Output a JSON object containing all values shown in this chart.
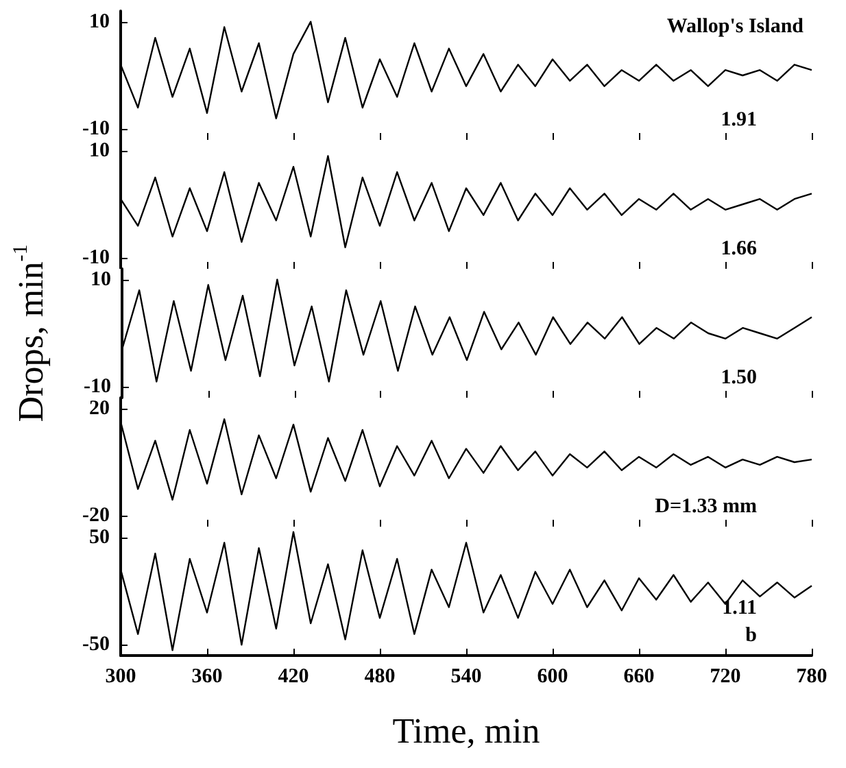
{
  "chart_data": [
    {
      "type": "line",
      "x": [
        300,
        312,
        324,
        336,
        348,
        360,
        372,
        384,
        396,
        408,
        420,
        432,
        444,
        456,
        468,
        480,
        492,
        504,
        516,
        528,
        540,
        552,
        564,
        576,
        588,
        600,
        612,
        624,
        636,
        648,
        660,
        672,
        684,
        696,
        708,
        720,
        732,
        744,
        756,
        768,
        780
      ],
      "series": [
        {
          "color": "#000000",
          "values": [
            2,
            -6,
            7,
            -4,
            5,
            -7,
            9,
            -3,
            6,
            -8,
            4,
            10,
            -5,
            7,
            -6,
            3,
            -4,
            6,
            -3,
            5,
            -2,
            4,
            -3,
            2,
            -2,
            3,
            -1,
            2,
            -2,
            1,
            -1,
            2,
            -1,
            1,
            -2,
            1,
            0,
            1,
            -1,
            2,
            1
          ]
        }
      ],
      "xlim": [
        300,
        780
      ],
      "xticks": [
        300,
        360,
        420,
        480,
        540,
        600,
        660,
        720,
        780
      ],
      "ylim": [
        -12,
        12
      ],
      "yticks": [
        -10,
        10
      ],
      "tick_labels": "y",
      "annotations": [
        "Wallop's Island",
        "1.91"
      ]
    },
    {
      "type": "line",
      "x": [
        300,
        312,
        324,
        336,
        348,
        360,
        372,
        384,
        396,
        408,
        420,
        432,
        444,
        456,
        468,
        480,
        492,
        504,
        516,
        528,
        540,
        552,
        564,
        576,
        588,
        600,
        612,
        624,
        636,
        648,
        660,
        672,
        684,
        696,
        708,
        720,
        732,
        744,
        756,
        768,
        780
      ],
      "series": [
        {
          "color": "#000000",
          "values": [
            1,
            -4,
            5,
            -6,
            3,
            -5,
            6,
            -7,
            4,
            -3,
            7,
            -6,
            9,
            -8,
            5,
            -4,
            6,
            -3,
            4,
            -5,
            3,
            -2,
            4,
            -3,
            2,
            -2,
            3,
            -1,
            2,
            -2,
            1,
            -1,
            2,
            -1,
            1,
            -1,
            0,
            1,
            -1,
            1,
            2
          ]
        }
      ],
      "xlim": [
        300,
        780
      ],
      "xticks": [
        300,
        360,
        420,
        480,
        540,
        600,
        660,
        720,
        780
      ],
      "ylim": [
        -12,
        12
      ],
      "yticks": [
        -10,
        10
      ],
      "tick_labels": "y",
      "annotations": [
        "1.66"
      ]
    },
    {
      "type": "line",
      "x": [
        300,
        312,
        324,
        336,
        348,
        360,
        372,
        384,
        396,
        408,
        420,
        432,
        444,
        456,
        468,
        480,
        492,
        504,
        516,
        528,
        540,
        552,
        564,
        576,
        588,
        600,
        612,
        624,
        636,
        648,
        660,
        672,
        684,
        696,
        708,
        720,
        732,
        744,
        756,
        768,
        780
      ],
      "series": [
        {
          "color": "#000000",
          "values": [
            -3,
            8,
            -9,
            6,
            -7,
            9,
            -5,
            7,
            -8,
            10,
            -6,
            5,
            -9,
            8,
            -4,
            6,
            -7,
            5,
            -4,
            3,
            -5,
            4,
            -3,
            2,
            -4,
            3,
            -2,
            2,
            -1,
            3,
            -2,
            1,
            -1,
            2,
            0,
            -1,
            1,
            0,
            -1,
            1,
            3
          ]
        }
      ],
      "xlim": [
        300,
        780
      ],
      "xticks": [
        300,
        360,
        420,
        480,
        540,
        600,
        660,
        720,
        780
      ],
      "ylim": [
        -12,
        12
      ],
      "yticks": [
        -10,
        10
      ],
      "tick_labels": "y",
      "ylabel": "Drops, min$^{-1}$",
      "annotations": [
        "1.50"
      ]
    },
    {
      "type": "line",
      "x": [
        300,
        312,
        324,
        336,
        348,
        360,
        372,
        384,
        396,
        408,
        420,
        432,
        444,
        456,
        468,
        480,
        492,
        504,
        516,
        528,
        540,
        552,
        564,
        576,
        588,
        600,
        612,
        624,
        636,
        648,
        660,
        672,
        684,
        696,
        708,
        720,
        732,
        744,
        756,
        768,
        780
      ],
      "series": [
        {
          "color": "#000000",
          "values": [
            15,
            -10,
            8,
            -14,
            12,
            -8,
            16,
            -12,
            10,
            -6,
            14,
            -11,
            9,
            -7,
            12,
            -9,
            6,
            -5,
            8,
            -6,
            5,
            -4,
            6,
            -3,
            4,
            -5,
            3,
            -2,
            4,
            -3,
            2,
            -2,
            3,
            -1,
            2,
            -2,
            1,
            -1,
            2,
            0,
            1
          ]
        }
      ],
      "xlim": [
        300,
        780
      ],
      "xticks": [
        300,
        360,
        420,
        480,
        540,
        600,
        660,
        720,
        780
      ],
      "ylim": [
        -24,
        24
      ],
      "yticks": [
        -20,
        20
      ],
      "tick_labels": "y",
      "annotations": [
        "D=1.33 mm"
      ]
    },
    {
      "type": "line",
      "x": [
        300,
        312,
        324,
        336,
        348,
        360,
        372,
        384,
        396,
        408,
        420,
        432,
        444,
        456,
        468,
        480,
        492,
        504,
        516,
        528,
        540,
        552,
        564,
        576,
        588,
        600,
        612,
        624,
        636,
        648,
        660,
        672,
        684,
        696,
        708,
        720,
        732,
        744,
        756,
        768,
        780
      ],
      "series": [
        {
          "color": "#000000",
          "values": [
            20,
            -40,
            35,
            -55,
            30,
            -20,
            45,
            -50,
            40,
            -35,
            55,
            -30,
            25,
            -45,
            38,
            -25,
            30,
            -40,
            20,
            -15,
            45,
            -20,
            15,
            -25,
            18,
            -12,
            20,
            -15,
            10,
            -18,
            12,
            -8,
            15,
            -10,
            8,
            -12,
            10,
            -5,
            8,
            -6,
            5
          ]
        }
      ],
      "xlim": [
        300,
        780
      ],
      "xticks": [
        300,
        360,
        420,
        480,
        540,
        600,
        660,
        720,
        780
      ],
      "ylim": [
        -60,
        60
      ],
      "yticks": [
        -50,
        50
      ],
      "xlabel": "Time, min",
      "annotations": [
        "1.11",
        "b"
      ]
    }
  ]
}
